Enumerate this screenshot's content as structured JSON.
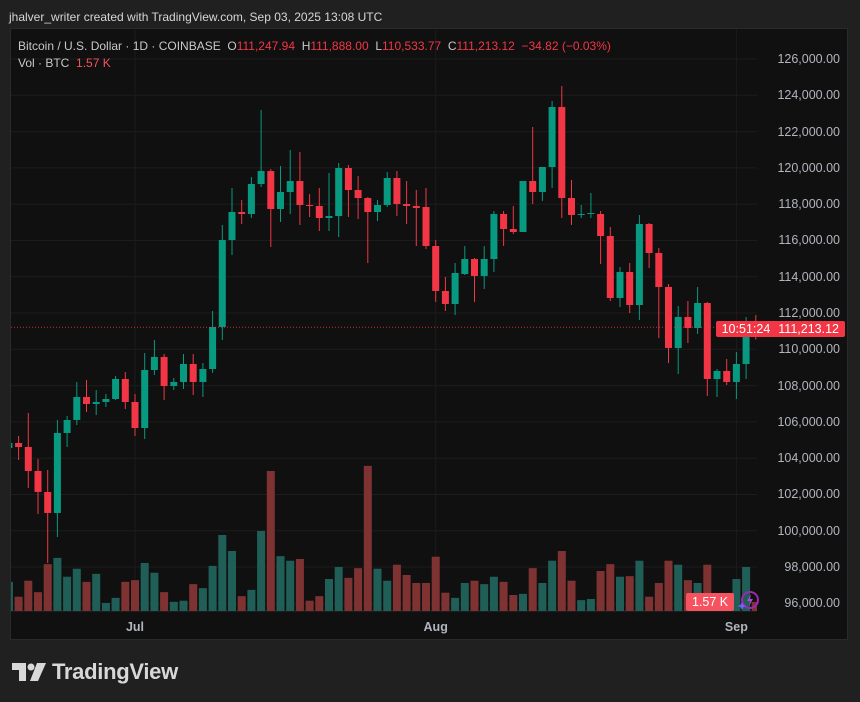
{
  "credit": "jhalver_writer created with TradingView.com, Sep 03, 2025 13:08 UTC",
  "legend": {
    "symbol": "Bitcoin / U.S. Dollar · 1D · COINBASE",
    "o_label": "O",
    "o": "111,247.94",
    "h_label": "H",
    "h": "111,888.00",
    "l_label": "L",
    "l": "110,533.77",
    "c_label": "C",
    "c": "111,213.12",
    "change": "−34.82 (−0.03%)",
    "vol_label": "Vol · BTC",
    "vol": "1.57 K"
  },
  "price_axis": [
    "126,000.00",
    "124,000.00",
    "122,000.00",
    "120,000.00",
    "118,000.00",
    "116,000.00",
    "114,000.00",
    "112,000.00",
    "110,000.00",
    "108,000.00",
    "106,000.00",
    "104,000.00",
    "102,000.00",
    "100,000.00",
    "98,000.00",
    "96,000.00"
  ],
  "last_price": {
    "price": "111,213.12",
    "countdown": "10:51:24",
    "value": 111213.12
  },
  "volume_badge": "1.57 K",
  "time_axis": [
    {
      "label": "Jul",
      "index": 13
    },
    {
      "label": "Aug",
      "index": 44
    },
    {
      "label": "Sep",
      "index": 75
    }
  ],
  "brand": "TradingView",
  "colors": {
    "up": "#089981",
    "down": "#f23645",
    "vol_up": "#1f5f57",
    "vol_down": "#7f3232"
  },
  "chart_data": {
    "type": "candlestick",
    "title": "Bitcoin / U.S. Dollar · 1D · COINBASE",
    "x_start": "2025-06-18",
    "ylim": [
      96000,
      126000
    ],
    "volume_unit": "K BTC",
    "ohlc": [
      [
        104562,
        104950,
        104450,
        104837
      ],
      [
        104837,
        105223,
        103901,
        104617
      ],
      [
        104617,
        106491,
        102358,
        103295
      ],
      [
        103295,
        103956,
        100926,
        102138
      ],
      [
        102138,
        103350,
        98226,
        100981
      ],
      [
        100981,
        106105,
        99658,
        105389
      ],
      [
        105389,
        106325,
        104617,
        106105
      ],
      [
        106105,
        108200,
        105830,
        107373
      ],
      [
        107373,
        108310,
        106546,
        106987
      ],
      [
        106987,
        107759,
        106381,
        107097
      ],
      [
        107097,
        107539,
        106822,
        107263
      ],
      [
        107263,
        108531,
        107207,
        108365
      ],
      [
        108365,
        108751,
        106711,
        107097
      ],
      [
        107097,
        107539,
        105223,
        105664
      ],
      [
        105664,
        109798,
        105058,
        108861
      ],
      [
        108861,
        110515,
        108586,
        109578
      ],
      [
        109578,
        109743,
        107207,
        107979
      ],
      [
        107979,
        108420,
        107759,
        108200
      ],
      [
        108200,
        109743,
        107814,
        109192
      ],
      [
        109192,
        109743,
        107484,
        108200
      ],
      [
        108200,
        109247,
        107373,
        108916
      ],
      [
        108916,
        112112,
        108700,
        111231
      ],
      [
        111231,
        116851,
        110515,
        116025
      ],
      [
        116025,
        118890,
        115198,
        117568
      ],
      [
        117568,
        118229,
        116906,
        117457
      ],
      [
        117457,
        119496,
        117237,
        119111
      ],
      [
        119111,
        123189,
        118945,
        119827
      ],
      [
        119827,
        119937,
        115639,
        117733
      ],
      [
        117733,
        120103,
        117016,
        118669
      ],
      [
        118669,
        120985,
        117457,
        119276
      ],
      [
        119276,
        120874,
        116851,
        117953
      ],
      [
        117953,
        118559,
        117292,
        117898
      ],
      [
        117898,
        118890,
        116520,
        117237
      ],
      [
        117237,
        119717,
        116520,
        117347
      ],
      [
        117347,
        120268,
        116190,
        119993
      ],
      [
        119993,
        120158,
        117292,
        118780
      ],
      [
        118780,
        119552,
        117182,
        118339
      ],
      [
        118339,
        118394,
        114757,
        117568
      ],
      [
        117568,
        118229,
        117072,
        117953
      ],
      [
        117953,
        119772,
        117843,
        119441
      ],
      [
        119441,
        119827,
        117347,
        118008
      ],
      [
        118008,
        119276,
        116906,
        117898
      ],
      [
        117898,
        118780,
        115694,
        117788
      ],
      [
        117843,
        118890,
        115528,
        115694
      ],
      [
        115694,
        116025,
        112609,
        113215
      ],
      [
        113215,
        113986,
        112112,
        112498
      ],
      [
        112498,
        114757,
        111892,
        114206
      ],
      [
        114151,
        115694,
        114096,
        114977
      ],
      [
        114977,
        115033,
        112609,
        114041
      ],
      [
        114041,
        115694,
        113325,
        114977
      ],
      [
        114977,
        117623,
        114261,
        117457
      ],
      [
        117457,
        117623,
        115694,
        116631
      ],
      [
        116631,
        117898,
        116355,
        116465
      ],
      [
        116465,
        119276,
        116465,
        119276
      ],
      [
        119276,
        122252,
        118008,
        118669
      ],
      [
        118669,
        120048,
        118174,
        120048
      ],
      [
        120048,
        123685,
        118890,
        123354
      ],
      [
        123354,
        124512,
        117237,
        118339
      ],
      [
        118339,
        119331,
        116851,
        117402
      ],
      [
        117402,
        117953,
        117237,
        117457
      ],
      [
        117457,
        118614,
        117237,
        117513
      ],
      [
        117457,
        117623,
        114702,
        116245
      ],
      [
        116245,
        116741,
        112664,
        112829
      ],
      [
        112829,
        114537,
        112333,
        114261
      ],
      [
        114261,
        114757,
        112002,
        112443
      ],
      [
        112443,
        117402,
        111616,
        116906
      ],
      [
        116906,
        116961,
        114481,
        115308
      ],
      [
        115308,
        115584,
        110625,
        113435
      ],
      [
        113435,
        113600,
        109247,
        110074
      ],
      [
        110074,
        112388,
        108641,
        111782
      ],
      [
        111782,
        112664,
        110349,
        111176
      ],
      [
        111176,
        113435,
        110845,
        112553
      ],
      [
        112553,
        112609,
        107428,
        108365
      ],
      [
        108365,
        108916,
        107373,
        108806
      ],
      [
        108806,
        109467,
        108035,
        108200
      ],
      [
        108200,
        109853,
        107263,
        109192
      ],
      [
        109192,
        111782,
        108365,
        111176
      ],
      [
        111247.94,
        111888,
        110533.77,
        111213.12
      ]
    ],
    "volume": [
      5.1,
      2.5,
      5.3,
      3.3,
      8.2,
      9.3,
      6.0,
      7.4,
      5.1,
      6.5,
      1.4,
      2.3,
      5.1,
      5.4,
      8.4,
      6.7,
      3.3,
      1.6,
      1.8,
      4.7,
      4.0,
      7.9,
      13.3,
      10.5,
      2.6,
      3.7,
      14.0,
      24.5,
      9.6,
      8.8,
      9.1,
      1.8,
      2.6,
      5.6,
      7.7,
      5.8,
      7.5,
      25.4,
      7.4,
      5.3,
      8.1,
      6.3,
      4.9,
      4.9,
      9.5,
      3.2,
      2.3,
      4.9,
      5.3,
      4.7,
      6.0,
      5.1,
      2.8,
      3.0,
      7.5,
      4.9,
      8.8,
      10.5,
      5.3,
      1.9,
      2.1,
      7.0,
      8.2,
      6.0,
      6.1,
      8.8,
      2.5,
      4.9,
      8.8,
      8.1,
      5.4,
      4.9,
      8.1,
      3.0,
      2.8,
      5.6,
      7.7,
      1.57
    ]
  }
}
